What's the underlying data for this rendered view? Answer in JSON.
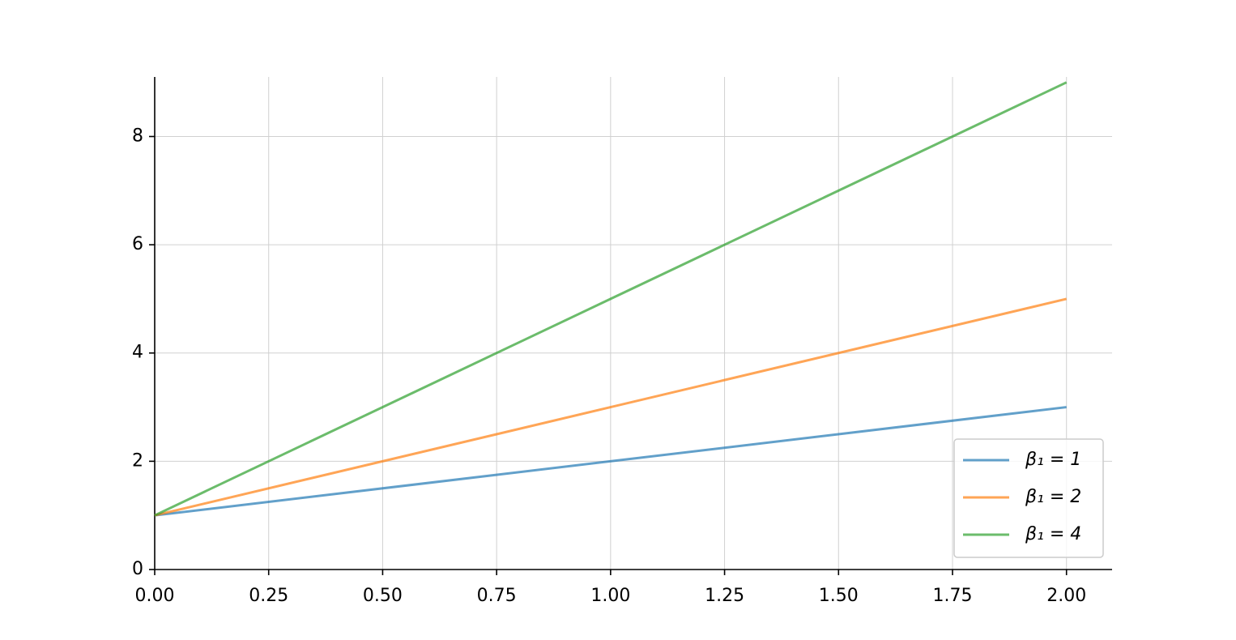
{
  "chart_data": {
    "type": "line",
    "x": [
      0,
      2
    ],
    "series": [
      {
        "name": "β₁ = 1",
        "color": "#1f77b4",
        "values": [
          1,
          3
        ]
      },
      {
        "name": "β₁ = 2",
        "color": "#ff7f0e",
        "values": [
          1,
          5
        ]
      },
      {
        "name": "β₁ = 4",
        "color": "#2ca02c",
        "values": [
          1,
          9
        ]
      }
    ],
    "alpha": 0.7,
    "xlim": [
      0,
      2.1
    ],
    "ylim": [
      0,
      9.1
    ],
    "xticks": [
      {
        "value": 0,
        "label": "0.00"
      },
      {
        "value": 0.25,
        "label": "0.25"
      },
      {
        "value": 0.5,
        "label": "0.50"
      },
      {
        "value": 0.75,
        "label": "0.75"
      },
      {
        "value": 1,
        "label": "1.00"
      },
      {
        "value": 1.25,
        "label": "1.25"
      },
      {
        "value": 1.5,
        "label": "1.50"
      },
      {
        "value": 1.75,
        "label": "1.75"
      },
      {
        "value": 2,
        "label": "2.00"
      }
    ],
    "yticks": [
      0,
      2,
      4,
      6,
      8
    ],
    "grid": true,
    "legend": "lower right"
  }
}
